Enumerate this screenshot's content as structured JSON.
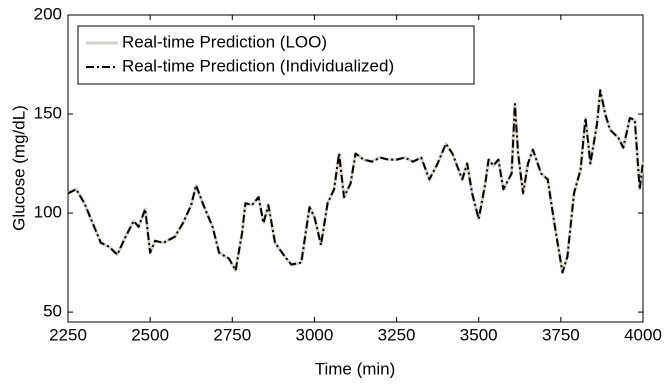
{
  "chart_data": {
    "type": "line",
    "x_label": "Time (min)",
    "y_label": "Glucose (mg/dL)",
    "x": [
      2250,
      2275,
      2300,
      2325,
      2350,
      2375,
      2400,
      2425,
      2450,
      2465,
      2485,
      2500,
      2515,
      2540,
      2575,
      2600,
      2625,
      2640,
      2660,
      2690,
      2710,
      2740,
      2760,
      2780,
      2790,
      2810,
      2830,
      2845,
      2860,
      2880,
      2910,
      2930,
      2960,
      2985,
      3000,
      3020,
      3040,
      3060,
      3075,
      3090,
      3110,
      3125,
      3150,
      3175,
      3200,
      3225,
      3250,
      3275,
      3300,
      3325,
      3350,
      3375,
      3400,
      3420,
      3450,
      3465,
      3480,
      3500,
      3520,
      3530,
      3545,
      3560,
      3575,
      3600,
      3610,
      3620,
      3635,
      3650,
      3665,
      3690,
      3710,
      3730,
      3755,
      3770,
      3790,
      3810,
      3825,
      3840,
      3860,
      3870,
      3885,
      3900,
      3925,
      3940,
      3960,
      3975,
      3990,
      4000
    ],
    "series": [
      {
        "name": "Real-time Prediction (LOO)",
        "color": "#d6d1c6",
        "style": "solid",
        "values": [
          110,
          112,
          105,
          95,
          85,
          83,
          79,
          88,
          96,
          93,
          102,
          80,
          86,
          85,
          88,
          95,
          104,
          114,
          105,
          93,
          80,
          77,
          71,
          90,
          105,
          104,
          108,
          95,
          104,
          85,
          78,
          74,
          75,
          103,
          98,
          84,
          105,
          112,
          130,
          108,
          115,
          130,
          127,
          126,
          128,
          127,
          127,
          128,
          126,
          128,
          117,
          125,
          135,
          130,
          117,
          125,
          110,
          97,
          115,
          127,
          124,
          127,
          112,
          120,
          155,
          130,
          110,
          125,
          132,
          120,
          117,
          95,
          70,
          78,
          110,
          122,
          148,
          125,
          145,
          162,
          150,
          142,
          138,
          133,
          148,
          147,
          112,
          126
        ]
      },
      {
        "name": "Real-time Prediction (Individualized)",
        "color": "#000000",
        "style": "dashdot",
        "values": [
          110,
          112,
          105,
          95,
          85,
          83,
          79,
          88,
          96,
          93,
          102,
          80,
          86,
          85,
          88,
          95,
          104,
          114,
          105,
          93,
          80,
          77,
          71,
          90,
          105,
          104,
          108,
          95,
          104,
          85,
          78,
          74,
          75,
          103,
          98,
          84,
          105,
          112,
          130,
          108,
          115,
          130,
          127,
          126,
          128,
          127,
          127,
          128,
          126,
          128,
          117,
          125,
          135,
          130,
          117,
          125,
          110,
          97,
          115,
          127,
          124,
          127,
          112,
          120,
          155,
          130,
          110,
          125,
          132,
          120,
          117,
          95,
          70,
          78,
          110,
          122,
          148,
          125,
          145,
          162,
          150,
          142,
          138,
          133,
          148,
          147,
          112,
          126
        ]
      }
    ],
    "xlim": [
      2250,
      4000
    ],
    "xticks": [
      2250,
      2500,
      2750,
      3000,
      3250,
      3500,
      3750,
      4000
    ],
    "ylim": [
      45,
      200
    ],
    "yticks": [
      50,
      100,
      150,
      200
    ],
    "legend": "upper left",
    "grid": false
  }
}
